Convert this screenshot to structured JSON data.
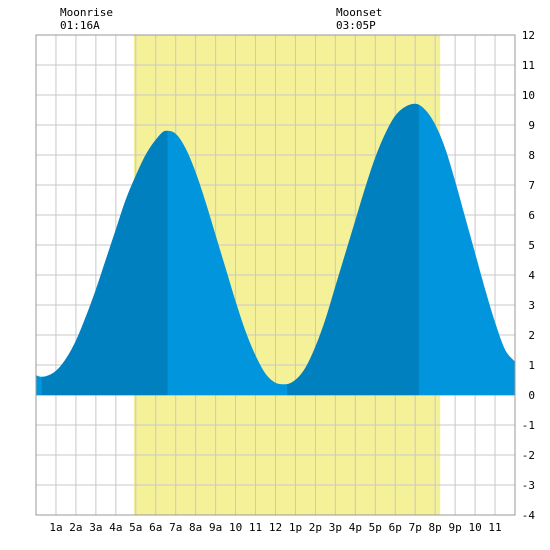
{
  "moonrise": {
    "label": "Moonrise",
    "time": "01:16A"
  },
  "moonset": {
    "label": "Moonset",
    "time": "03:05P"
  },
  "colors": {
    "background": "#ffffff",
    "daylight": "#f5f199",
    "grid": "#c8c8c8",
    "tide_dark": "#0080be",
    "tide_light": "#0095dc",
    "axis_text": "#000000"
  },
  "chart_data": {
    "type": "area",
    "title": "",
    "xlabel": "",
    "ylabel": "",
    "xlim": [
      0,
      24
    ],
    "ylim": [
      -4,
      12
    ],
    "y_ticks": [
      -4,
      -3,
      -2,
      -1,
      0,
      1,
      2,
      3,
      4,
      5,
      6,
      7,
      8,
      9,
      10,
      11,
      12
    ],
    "x_ticks": [
      {
        "hour": 1,
        "label": "1a"
      },
      {
        "hour": 2,
        "label": "2a"
      },
      {
        "hour": 3,
        "label": "3a"
      },
      {
        "hour": 4,
        "label": "4a"
      },
      {
        "hour": 5,
        "label": "5a"
      },
      {
        "hour": 6,
        "label": "6a"
      },
      {
        "hour": 7,
        "label": "7a"
      },
      {
        "hour": 8,
        "label": "8a"
      },
      {
        "hour": 9,
        "label": "9a"
      },
      {
        "hour": 10,
        "label": "10"
      },
      {
        "hour": 11,
        "label": "11"
      },
      {
        "hour": 12,
        "label": "12"
      },
      {
        "hour": 13,
        "label": "1p"
      },
      {
        "hour": 14,
        "label": "2p"
      },
      {
        "hour": 15,
        "label": "3p"
      },
      {
        "hour": 16,
        "label": "4p"
      },
      {
        "hour": 17,
        "label": "5p"
      },
      {
        "hour": 18,
        "label": "6p"
      },
      {
        "hour": 19,
        "label": "7p"
      },
      {
        "hour": 20,
        "label": "8p"
      },
      {
        "hour": 21,
        "label": "9p"
      },
      {
        "hour": 22,
        "label": "10"
      },
      {
        "hour": 23,
        "label": "11"
      }
    ],
    "daylight": {
      "start_hour": 4.9,
      "end_hour": 20.25
    },
    "moonrise_hour": 1.27,
    "moonset_hour": 15.08,
    "extrema": [
      {
        "hour": 0.3,
        "height": 0.6,
        "kind": "low"
      },
      {
        "hour": 6.6,
        "height": 8.8,
        "kind": "high"
      },
      {
        "hour": 12.6,
        "height": 0.35,
        "kind": "low"
      },
      {
        "hour": 19.2,
        "height": 9.7,
        "kind": "high"
      }
    ],
    "series": [
      {
        "x": [
          0,
          0.25,
          0.5,
          1,
          1.5,
          2,
          2.5,
          3,
          3.5,
          4,
          4.5,
          5,
          5.5,
          6,
          6.5,
          7,
          7.5,
          8,
          8.5,
          9,
          9.5,
          10,
          10.5,
          11,
          11.5,
          12,
          12.5,
          13,
          13.5,
          14,
          14.5,
          15,
          15.5,
          16,
          16.5,
          17,
          17.5,
          18,
          18.5,
          19,
          19.5,
          20,
          20.5,
          21,
          21.5,
          22,
          22.5,
          23,
          23.5,
          24
        ],
        "y": [
          0.65,
          0.6,
          0.62,
          0.8,
          1.2,
          1.8,
          2.6,
          3.5,
          4.5,
          5.5,
          6.5,
          7.3,
          8.0,
          8.5,
          8.8,
          8.7,
          8.2,
          7.4,
          6.4,
          5.3,
          4.2,
          3.1,
          2.1,
          1.3,
          0.7,
          0.4,
          0.35,
          0.5,
          0.9,
          1.6,
          2.5,
          3.6,
          4.7,
          5.8,
          6.9,
          7.9,
          8.7,
          9.3,
          9.6,
          9.7,
          9.5,
          9.0,
          8.2,
          7.1,
          5.9,
          4.7,
          3.5,
          2.4,
          1.5,
          1.1
        ]
      }
    ]
  }
}
